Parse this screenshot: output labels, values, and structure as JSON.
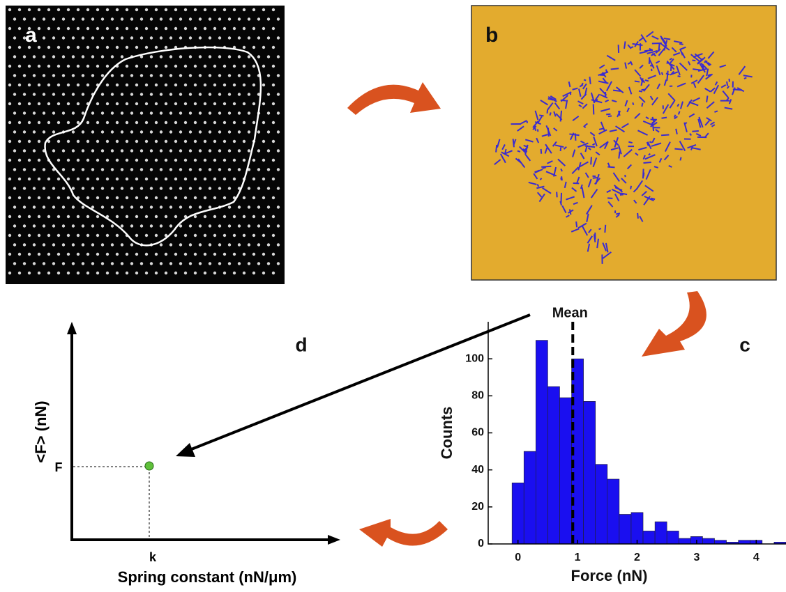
{
  "panel_labels": [
    "a",
    "b",
    "c",
    "d"
  ],
  "schematic": {
    "y_label": "<F> (nN)",
    "x_label": "Spring constant (nN/μm)",
    "y_marker": "F",
    "x_marker": "k"
  },
  "chart_data": {
    "type": "histogram",
    "bins": [
      -0.1,
      0.1,
      0.3,
      0.5,
      0.7,
      0.9,
      1.1,
      1.3,
      1.5,
      1.7,
      1.9,
      2.1,
      2.3,
      2.5,
      2.7,
      2.9,
      3.1,
      3.3,
      3.5,
      3.7,
      3.9,
      4.1,
      4.3,
      4.5
    ],
    "values": [
      33,
      50,
      110,
      85,
      79,
      100,
      77,
      43,
      35,
      16,
      17,
      7,
      12,
      7,
      3,
      4,
      3,
      2,
      1,
      2,
      2,
      0,
      1
    ],
    "color": "#1a0ff0",
    "x_label": "Force (nN)",
    "y_label": "Counts",
    "xlim": [
      -0.5,
      4.5
    ],
    "xticks": [
      0,
      1,
      2,
      3,
      4
    ],
    "ylim": [
      0,
      120
    ],
    "yticks": [
      0,
      20,
      40,
      60,
      80,
      100
    ],
    "mean": 0.92,
    "mean_label": "Mean"
  }
}
